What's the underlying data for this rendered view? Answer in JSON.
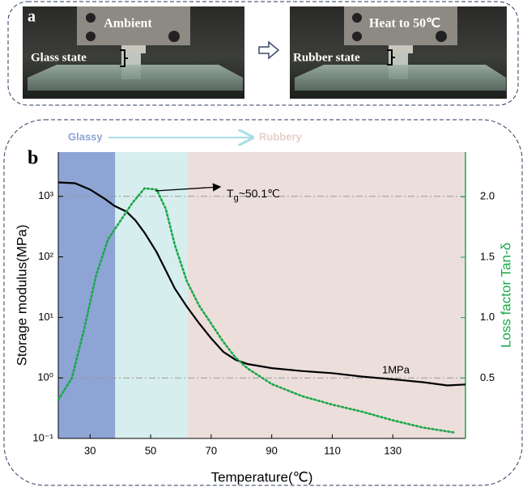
{
  "panel_a": {
    "label": "a",
    "left": {
      "top_text": "Ambient",
      "side_text": "Glass state"
    },
    "right": {
      "top_text": "Heat to 50℃",
      "side_text": "Rubber state"
    }
  },
  "chart_data": {
    "type": "line",
    "panel_label": "b",
    "xlabel": "Temperature(℃)",
    "ylabel": "Storage modulus(MPa)",
    "y2label": "Loss factor Tan-δ",
    "xlim": [
      19.5,
      154
    ],
    "xticks": [
      30,
      50,
      70,
      90,
      110,
      130
    ],
    "ylim": [
      0.1,
      5400
    ],
    "yscale": "log",
    "yticks": [
      {
        "value": 0.1,
        "label": "10⁻¹"
      },
      {
        "value": 1,
        "label": "10⁰"
      },
      {
        "value": 10,
        "label": "10¹"
      },
      {
        "value": 100,
        "label": "10²"
      },
      {
        "value": 1000,
        "label": "10³"
      }
    ],
    "y2lim": [
      0,
      2.37
    ],
    "y2ticks": [
      0.5,
      {
        "value": 1,
        "label": "1.0"
      },
      1.5,
      {
        "value": 2,
        "label": "2.0"
      }
    ],
    "y2color": "#1aa84a",
    "regions": [
      {
        "xlim": [
          19.5,
          38.3
        ],
        "color": "#8ea4d4"
      },
      {
        "xlim": [
          38.3,
          62.2
        ],
        "color": "#d7eeee"
      },
      {
        "xlim": [
          62.2,
          154
        ],
        "color": "#ecdedb"
      }
    ],
    "phase_labels": [
      {
        "text": "Glassy",
        "color": "#8ea4d4"
      },
      {
        "text": "Rubbery",
        "color": "#e6cfca"
      }
    ],
    "reference_lines": [
      1000,
      1
    ],
    "reference_label": "1MPa",
    "tg_annotation": [
      "T",
      "g",
      "~50.1℃"
    ],
    "series": [
      {
        "color": "#000000",
        "style": "solid",
        "x": [
          19.5,
          25,
          30,
          35,
          38,
          42,
          45,
          48,
          52,
          55,
          58,
          62,
          66,
          70,
          74,
          78,
          82,
          90,
          100,
          110,
          120,
          130,
          140,
          148,
          154
        ],
        "values": [
          1700,
          1650,
          1300,
          900,
          700,
          560,
          400,
          250,
          120,
          60,
          30,
          15,
          8,
          4.5,
          2.7,
          2.0,
          1.7,
          1.45,
          1.3,
          1.2,
          1.05,
          0.95,
          0.85,
          0.75,
          0.78
        ]
      },
      {
        "color": "#1aa84a",
        "style": "dotted",
        "axis": "y2",
        "x": [
          19.5,
          24,
          28,
          32,
          36,
          40,
          44,
          48,
          52,
          55,
          58,
          62,
          66,
          70,
          74,
          78,
          82,
          90,
          100,
          110,
          120,
          130,
          140,
          150
        ],
        "values": [
          0.32,
          0.5,
          0.9,
          1.35,
          1.65,
          1.8,
          1.95,
          2.07,
          2.06,
          1.9,
          1.6,
          1.3,
          1.1,
          0.95,
          0.8,
          0.67,
          0.58,
          0.45,
          0.35,
          0.28,
          0.22,
          0.15,
          0.09,
          0.05
        ]
      }
    ]
  }
}
